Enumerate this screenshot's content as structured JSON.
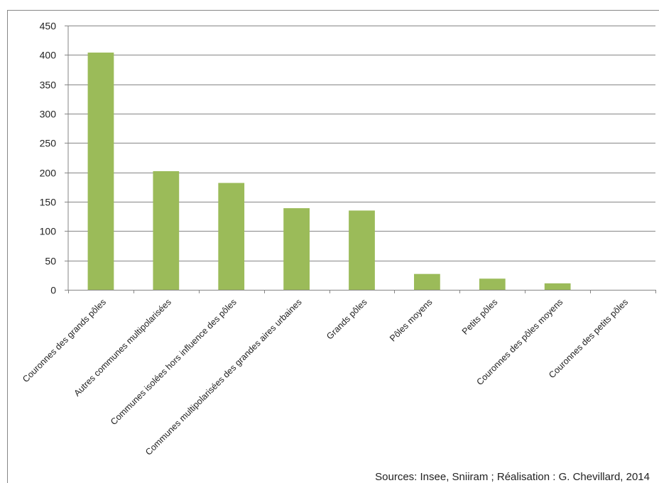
{
  "chart_data": {
    "type": "bar",
    "categories": [
      "Couronnes des grands pôles",
      "Autres communes multipolarisées",
      "Communes isolées hors influence des pôles",
      "Communes multipolarisées des grandes aires urbaines",
      "Grands pôles",
      "Pôles moyens",
      "Petits pôles",
      "Couronnes des pôles moyens",
      "Couronnes des petits pôles"
    ],
    "values": [
      404,
      202,
      182,
      139,
      135,
      27,
      19,
      11,
      0
    ],
    "title": "",
    "xlabel": "",
    "ylabel": "",
    "ylim": [
      0,
      450
    ],
    "yticks": [
      0,
      50,
      100,
      150,
      200,
      250,
      300,
      350,
      400,
      450
    ],
    "grid": true,
    "legend": "none",
    "bar_color": "#9bbb59",
    "gridline_color": "#868686",
    "source_note": "Sources: Insee, Sniiram ; Réalisation : G. Chevillard, 2014"
  }
}
